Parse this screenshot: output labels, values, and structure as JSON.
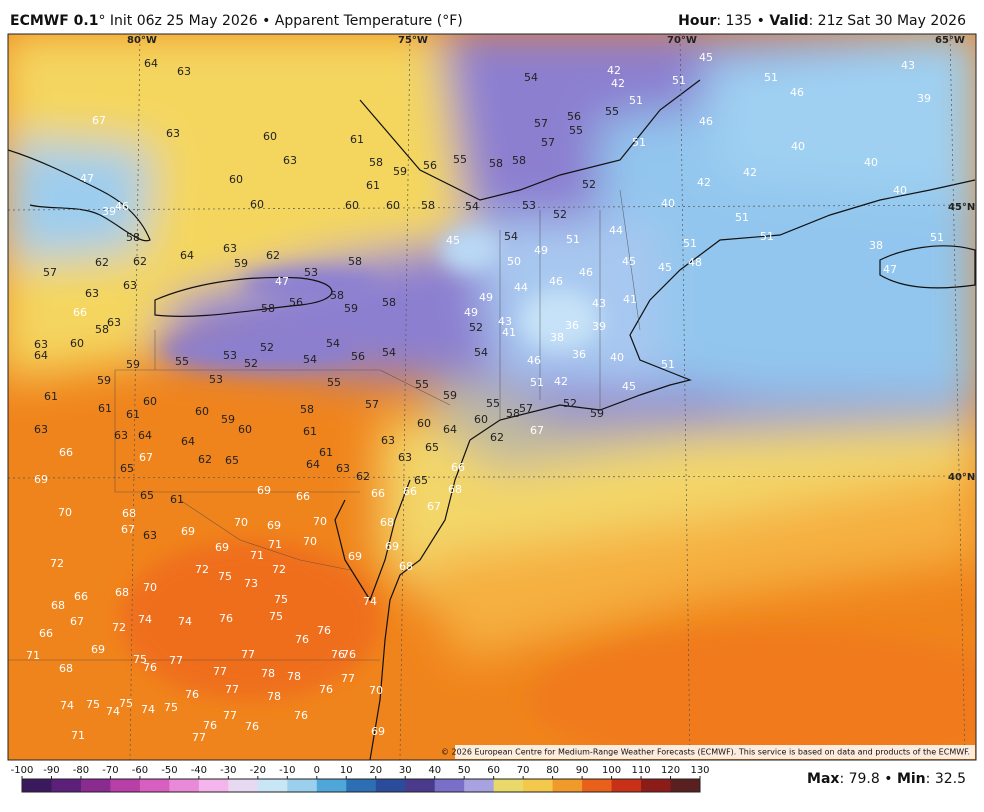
{
  "header": {
    "model": "ECMWF 0.1",
    "title": "° Init 06z 25 May 2026 • Apparent Temperature (°F)",
    "hour_label": "Hour",
    "hour_value": ": 135 • ",
    "valid_label": "Valid",
    "valid_value": ": 21z Sat 30 May 2026"
  },
  "map": {
    "longitudes": [
      "80°W",
      "75°W",
      "70°W",
      "65°W"
    ],
    "latitudes": [
      "45°N",
      "40°N"
    ],
    "copyright": "© 2026 European Centre for Medium-Range Weather Forecasts (ECMWF). This service is based on data and products of the ECMWF.",
    "labels": [
      64,
      63,
      67,
      63,
      60,
      61,
      63,
      58,
      56,
      55,
      58,
      58,
      54,
      57,
      57,
      56,
      55,
      55,
      51,
      42,
      42,
      45,
      51,
      51,
      46,
      39,
      43,
      46,
      51,
      40,
      40,
      42,
      42,
      40,
      40,
      51,
      52,
      52,
      51,
      49,
      50,
      54,
      44,
      45,
      46,
      46,
      44,
      43,
      41,
      36,
      39,
      38,
      36,
      46,
      51,
      42,
      40,
      45,
      51,
      45,
      48,
      51,
      51,
      38,
      51,
      47,
      47,
      39,
      46,
      58,
      60,
      60,
      60,
      60,
      59,
      61,
      58,
      54,
      53,
      45,
      49,
      49,
      52,
      43,
      41,
      54,
      55,
      57,
      58,
      52,
      59,
      60,
      62,
      62,
      62,
      63,
      64,
      59,
      62,
      63,
      53,
      58,
      47,
      56,
      58,
      58,
      59,
      58,
      52,
      53,
      55,
      52,
      54,
      54,
      56,
      54,
      53,
      55,
      55,
      59,
      57,
      58,
      60,
      59,
      60,
      61,
      63,
      64,
      65,
      63,
      62,
      63,
      64,
      61,
      60,
      64,
      62,
      65,
      67,
      65,
      63,
      64,
      61,
      60,
      59,
      61,
      61,
      63,
      66,
      69,
      59,
      58,
      63,
      60,
      63,
      64,
      57,
      66,
      63,
      69,
      66,
      61,
      65,
      68,
      67,
      63,
      69,
      70,
      69,
      70,
      70,
      71,
      69,
      71,
      72,
      70,
      66,
      68,
      70,
      72,
      75,
      73,
      72,
      75,
      75,
      74,
      74,
      74,
      76,
      76,
      76,
      72,
      68,
      67,
      66,
      69,
      71,
      68,
      75,
      76,
      77,
      77,
      77,
      78,
      78,
      76,
      76,
      77,
      76,
      70,
      74,
      75,
      75,
      74,
      74,
      75,
      76,
      77,
      78,
      76,
      77,
      76,
      76,
      77,
      71,
      69,
      66,
      66,
      68,
      69,
      69,
      68,
      65,
      67,
      68,
      66,
      67
    ]
  },
  "colorbar": {
    "ticks": [
      -100,
      -90,
      -80,
      -70,
      -60,
      -50,
      -40,
      -30,
      -20,
      -10,
      0,
      10,
      20,
      30,
      40,
      50,
      60,
      70,
      80,
      90,
      100,
      110,
      120,
      130
    ]
  },
  "footer": {
    "max_label": "Max",
    "max_value": ": 79.8 • ",
    "min_label": "Min",
    "min_value": ": 32.5"
  }
}
